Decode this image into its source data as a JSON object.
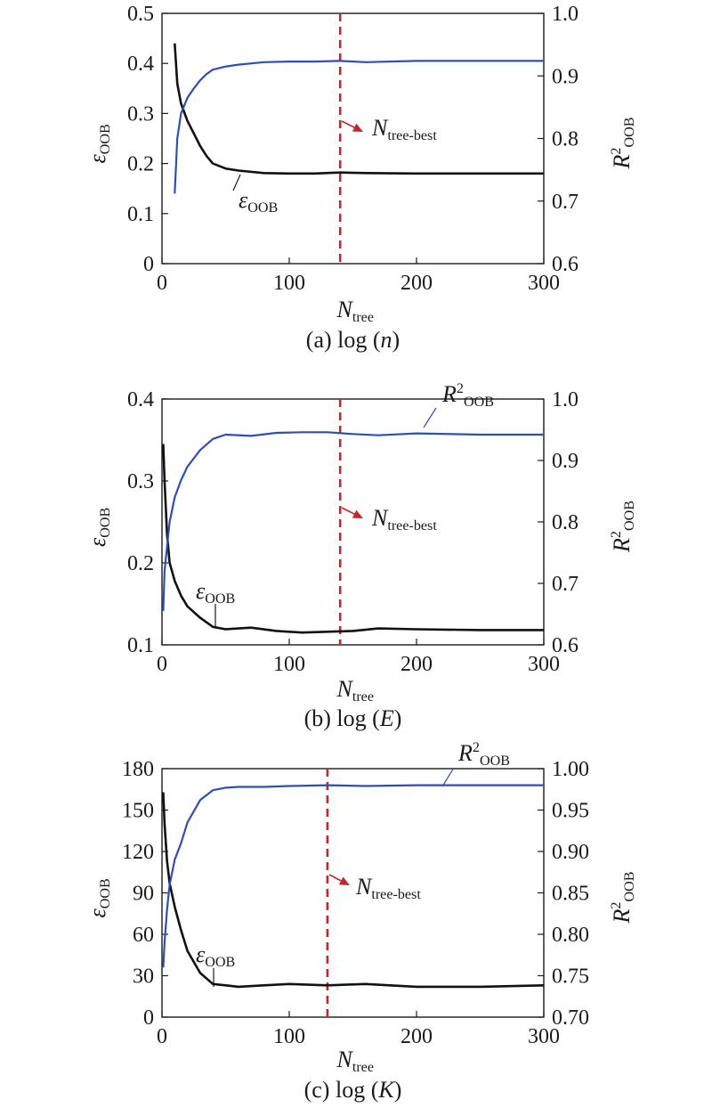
{
  "colors": {
    "eps": "#111111",
    "r2": "#2f4fb0",
    "best": "#c0282d",
    "axis": "#1a1a1a"
  },
  "chart_data": [
    {
      "type": "line",
      "caption": {
        "prefix": "(a) log (",
        "var": "n",
        "suffix": ")"
      },
      "xlabel": {
        "base": "N",
        "sub": "tree"
      },
      "ylabel_left": {
        "base": "ε",
        "sub": "OOB"
      },
      "ylabel_right": {
        "base": "R",
        "sup": "2",
        "sub": "OOB"
      },
      "xlim": [
        0,
        300
      ],
      "xticks": [
        0,
        100,
        200,
        300
      ],
      "ylim_left": [
        0,
        0.5
      ],
      "yticks_left": [
        "0",
        "0.1",
        "0.2",
        "0.3",
        "0.4",
        "0.5"
      ],
      "ylim_right": [
        0.6,
        1.0
      ],
      "yticks_right": [
        "0.6",
        "0.7",
        "0.8",
        "0.9",
        "1.0"
      ],
      "best_x": 140,
      "best_label": {
        "base": "N",
        "sub": "tree-best"
      },
      "series": [
        {
          "axis": "left",
          "label": {
            "base": "ε",
            "sub": "OOB"
          },
          "x": [
            10,
            12,
            15,
            20,
            25,
            30,
            35,
            40,
            50,
            60,
            80,
            100,
            120,
            140,
            160,
            200,
            250,
            300
          ],
          "values": [
            0.44,
            0.36,
            0.32,
            0.285,
            0.26,
            0.235,
            0.215,
            0.2,
            0.19,
            0.186,
            0.181,
            0.18,
            0.18,
            0.182,
            0.181,
            0.18,
            0.18,
            0.18
          ]
        },
        {
          "axis": "right",
          "label": null,
          "x": [
            10,
            12,
            15,
            20,
            25,
            30,
            35,
            40,
            50,
            60,
            80,
            100,
            120,
            140,
            160,
            200,
            250,
            300
          ],
          "values": [
            0.712,
            0.8,
            0.84,
            0.865,
            0.88,
            0.893,
            0.903,
            0.91,
            0.915,
            0.918,
            0.922,
            0.923,
            0.923,
            0.924,
            0.922,
            0.924,
            0.924,
            0.924
          ]
        }
      ]
    },
    {
      "type": "line",
      "caption": {
        "prefix": "(b) log (",
        "var": "E",
        "suffix": ")"
      },
      "xlabel": {
        "base": "N",
        "sub": "tree"
      },
      "ylabel_left": {
        "base": "ε",
        "sub": "OOB"
      },
      "ylabel_right": {
        "base": "R",
        "sup": "2",
        "sub": "OOB"
      },
      "xlim": [
        0,
        300
      ],
      "xticks": [
        0,
        100,
        200,
        300
      ],
      "ylim_left": [
        0.1,
        0.4
      ],
      "yticks_left": [
        "0.1",
        "0.2",
        "0.3",
        "0.4"
      ],
      "ylim_right": [
        0.6,
        1.0
      ],
      "yticks_right": [
        "0.6",
        "0.7",
        "0.8",
        "0.9",
        "1.0"
      ],
      "best_x": 140,
      "best_label": {
        "base": "N",
        "sub": "tree-best"
      },
      "series": [
        {
          "axis": "left",
          "label": {
            "base": "ε",
            "sub": "OOB"
          },
          "x": [
            1,
            2,
            4,
            6,
            10,
            15,
            20,
            30,
            40,
            50,
            70,
            90,
            110,
            130,
            150,
            170,
            200,
            250,
            300
          ],
          "values": [
            0.345,
            0.3,
            0.235,
            0.2,
            0.178,
            0.16,
            0.147,
            0.133,
            0.122,
            0.119,
            0.121,
            0.117,
            0.115,
            0.116,
            0.117,
            0.12,
            0.119,
            0.118,
            0.118
          ]
        },
        {
          "axis": "right",
          "label": {
            "base": "R",
            "sup": "2",
            "sub": "OOB"
          },
          "x": [
            1,
            2,
            4,
            6,
            10,
            15,
            20,
            30,
            40,
            50,
            70,
            90,
            110,
            130,
            150,
            170,
            200,
            250,
            300
          ],
          "values": [
            0.655,
            0.72,
            0.76,
            0.8,
            0.84,
            0.868,
            0.89,
            0.917,
            0.935,
            0.942,
            0.94,
            0.945,
            0.946,
            0.946,
            0.943,
            0.941,
            0.944,
            0.942,
            0.942
          ]
        }
      ]
    },
    {
      "type": "line",
      "caption": {
        "prefix": "(c) log (",
        "var": "K",
        "suffix": ")"
      },
      "xlabel": {
        "base": "N",
        "sub": "tree"
      },
      "ylabel_left": {
        "base": "ε",
        "sub": "OOB"
      },
      "ylabel_right": {
        "base": "R",
        "sup": "2",
        "sub": "OOB"
      },
      "xlim": [
        0,
        300
      ],
      "xticks": [
        0,
        100,
        200,
        300
      ],
      "ylim_left": [
        0,
        180
      ],
      "yticks_left": [
        "0",
        "30",
        "60",
        "90",
        "120",
        "150",
        "180"
      ],
      "ylim_right": [
        0.7,
        1.0
      ],
      "yticks_right": [
        "0.70",
        "0.75",
        "0.80",
        "0.85",
        "0.90",
        "0.95",
        "1.00"
      ],
      "best_x": 130,
      "best_label": {
        "base": "N",
        "sub": "tree-best"
      },
      "series": [
        {
          "axis": "left",
          "label": {
            "base": "ε",
            "sub": "OOB"
          },
          "x": [
            1,
            2,
            4,
            6,
            10,
            15,
            20,
            30,
            40,
            50,
            60,
            80,
            100,
            130,
            160,
            200,
            250,
            300
          ],
          "values": [
            163,
            140,
            113,
            97,
            80,
            63,
            48,
            32,
            24,
            23,
            22,
            23,
            24,
            23,
            24,
            22,
            22,
            23
          ]
        },
        {
          "axis": "right",
          "label": {
            "base": "R",
            "sup": "2",
            "sub": "OOB"
          },
          "x": [
            1,
            2,
            4,
            6,
            10,
            15,
            20,
            30,
            40,
            50,
            60,
            80,
            100,
            130,
            160,
            200,
            250,
            300
          ],
          "values": [
            0.76,
            0.79,
            0.83,
            0.86,
            0.89,
            0.91,
            0.935,
            0.962,
            0.974,
            0.977,
            0.978,
            0.978,
            0.979,
            0.98,
            0.979,
            0.98,
            0.98,
            0.98
          ]
        }
      ]
    }
  ]
}
